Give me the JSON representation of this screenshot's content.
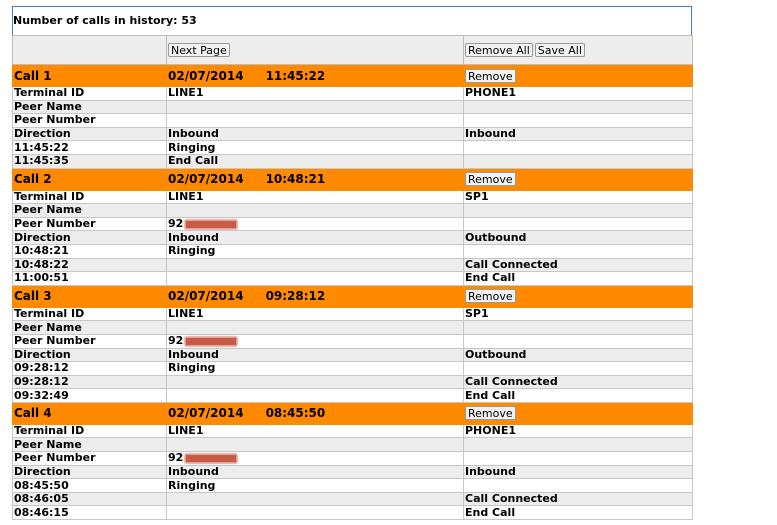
{
  "header": {
    "history_label": "Number of calls in history: 53"
  },
  "toolbar": {
    "next_page": "Next Page",
    "remove_all": "Remove All",
    "save_all": "Save All"
  },
  "remove_label": "Remove",
  "calls": [
    {
      "title": "Call 1",
      "date": "02/07/2014",
      "time": "11:45:22",
      "rows": [
        [
          "Terminal ID",
          "LINE1",
          "PHONE1"
        ],
        [
          "Peer Name",
          "",
          ""
        ],
        [
          "Peer Number",
          "",
          ""
        ],
        [
          "Direction",
          "Inbound",
          "Inbound"
        ],
        [
          "11:45:22",
          "Ringing",
          ""
        ],
        [
          "11:45:35",
          "End Call",
          ""
        ]
      ]
    },
    {
      "title": "Call 2",
      "date": "02/07/2014",
      "time": "10:48:21",
      "rows": [
        [
          "Terminal ID",
          "LINE1",
          "SP1"
        ],
        [
          "Peer Name",
          "",
          ""
        ],
        [
          "Peer Number",
          "92",
          ""
        ],
        [
          "Direction",
          "Inbound",
          "Outbound"
        ],
        [
          "10:48:21",
          "Ringing",
          ""
        ],
        [
          "10:48:22",
          "",
          "Call Connected"
        ],
        [
          "11:00:51",
          "",
          "End Call"
        ]
      ]
    },
    {
      "title": "Call 3",
      "date": "02/07/2014",
      "time": "09:28:12",
      "rows": [
        [
          "Terminal ID",
          "LINE1",
          "SP1"
        ],
        [
          "Peer Name",
          "",
          ""
        ],
        [
          "Peer Number",
          "92",
          ""
        ],
        [
          "Direction",
          "Inbound",
          "Outbound"
        ],
        [
          "09:28:12",
          "Ringing",
          ""
        ],
        [
          "09:28:12",
          "",
          "Call Connected"
        ],
        [
          "09:32:49",
          "",
          "End Call"
        ]
      ]
    },
    {
      "title": "Call 4",
      "date": "02/07/2014",
      "time": "08:45:50",
      "rows": [
        [
          "Terminal ID",
          "LINE1",
          "PHONE1"
        ],
        [
          "Peer Name",
          "",
          ""
        ],
        [
          "Peer Number",
          "92",
          ""
        ],
        [
          "Direction",
          "Inbound",
          "Inbound"
        ],
        [
          "08:45:50",
          "Ringing",
          ""
        ],
        [
          "08:46:05",
          "",
          "Call Connected"
        ],
        [
          "08:46:15",
          "",
          "End Call"
        ]
      ]
    }
  ],
  "colors": {
    "call_header": "#ff8a00",
    "row_gray": "#ededed",
    "frame": "#4a7cb8"
  }
}
